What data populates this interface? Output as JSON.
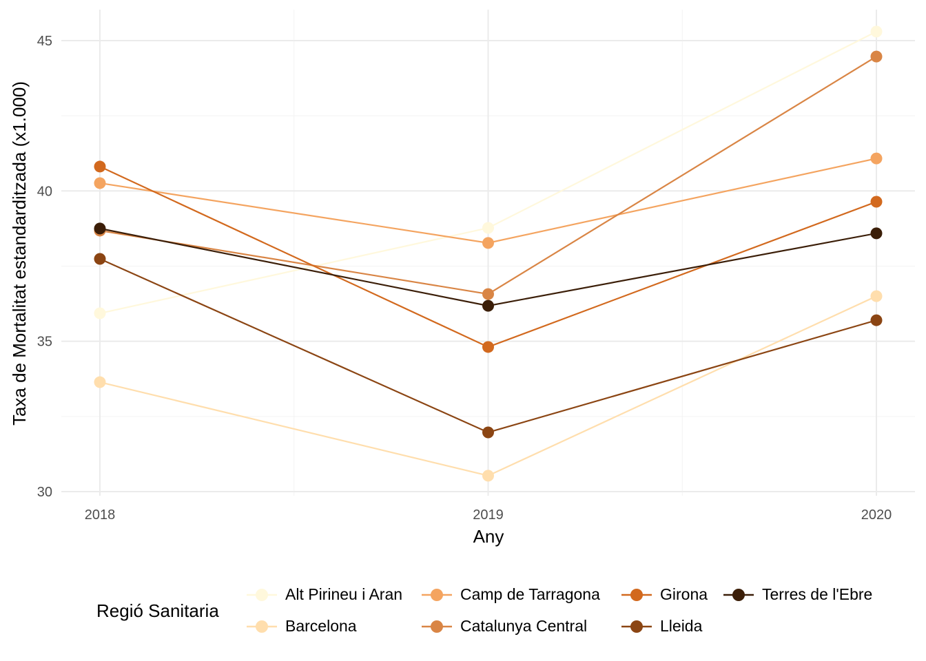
{
  "chart_data": {
    "type": "line",
    "title": "",
    "xlabel": "Any",
    "ylabel": "Taxa de Mortalitat estandarditzada (x1.000)",
    "x": [
      2018,
      2019,
      2020
    ],
    "x_tick_labels": [
      "2018",
      "2019",
      "2020"
    ],
    "y_tick_labels": [
      "30",
      "35",
      "40",
      "45"
    ],
    "y_ticks": [
      30,
      35,
      40,
      45
    ],
    "ylim": [
      30,
      45.6
    ],
    "xlim": [
      2017.9,
      2020.1
    ],
    "grid": true,
    "legend_title": "Regió Sanitaria",
    "legend_position": "bottom",
    "series": [
      {
        "name": "Alt Pirineu i Aran",
        "color": "#FFF8DC",
        "values": [
          35.93,
          38.77,
          45.3
        ]
      },
      {
        "name": "Barcelona",
        "color": "#FFDEAD",
        "values": [
          33.64,
          30.53,
          36.5
        ]
      },
      {
        "name": "Camp de Tarragona",
        "color": "#F4A460",
        "values": [
          40.26,
          38.27,
          41.08
        ]
      },
      {
        "name": "Catalunya Central",
        "color": "#D98545",
        "values": [
          38.68,
          36.57,
          44.47
        ]
      },
      {
        "name": "Girona",
        "color": "#D2691E",
        "values": [
          40.81,
          34.81,
          39.64
        ]
      },
      {
        "name": "Lleida",
        "color": "#8B4513",
        "values": [
          37.74,
          31.97,
          35.7
        ]
      },
      {
        "name": "Terres de l'Ebre",
        "color": "#3B1E08",
        "values": [
          38.75,
          36.18,
          38.59
        ]
      }
    ]
  }
}
